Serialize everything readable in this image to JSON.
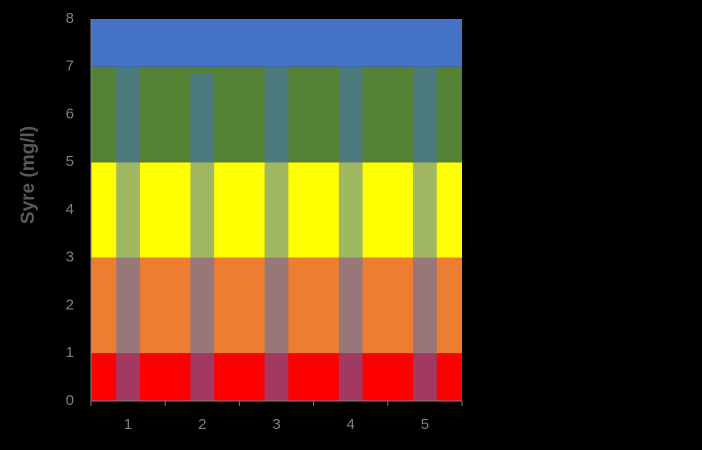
{
  "chart_data": {
    "type": "bar",
    "title": "",
    "xlabel": "",
    "ylabel": "Syre (mg/l)",
    "categories": [
      "1",
      "2",
      "3",
      "4",
      "5"
    ],
    "ylim": [
      0,
      8
    ],
    "yticks": [
      "0",
      "1",
      "2",
      "3",
      "4",
      "5",
      "6",
      "7",
      "8"
    ],
    "grid": false,
    "legend": "none",
    "background_bands": [
      {
        "from": 0,
        "to": 1,
        "color": "#FF0000"
      },
      {
        "from": 1,
        "to": 3,
        "color": "#ED7D31"
      },
      {
        "from": 3,
        "to": 5,
        "color": "#FFFF00"
      },
      {
        "from": 5,
        "to": 7,
        "color": "#548235"
      },
      {
        "from": 7,
        "to": 8,
        "color": "#4472C4"
      }
    ],
    "series": [
      {
        "values": [
          7.0,
          6.85,
          7.0,
          7.0,
          7.0
        ],
        "color": "#4472C4",
        "opacity": 0.5
      }
    ]
  }
}
